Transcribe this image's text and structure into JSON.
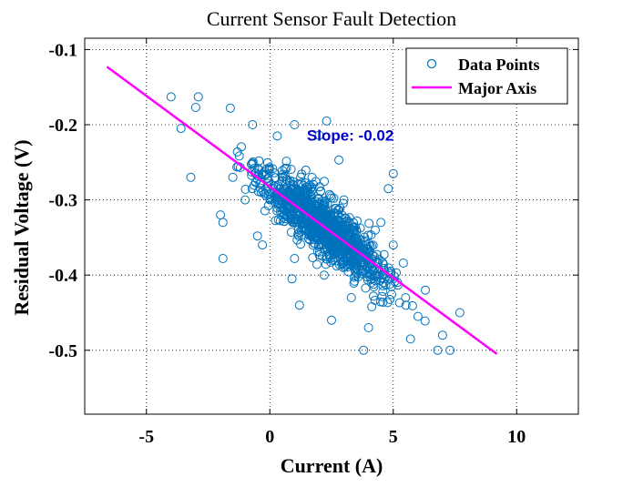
{
  "chart_data": {
    "type": "scatter",
    "title": "Current Sensor Fault Detection",
    "xlabel": "Current (A)",
    "ylabel": "Residual Voltage (V)",
    "xlim": [
      -7.5,
      12.5
    ],
    "ylim": [
      -0.585,
      -0.085
    ],
    "xticks": [
      -5,
      0,
      5,
      10
    ],
    "xtick_labels": [
      "-5",
      "0",
      "5",
      "10"
    ],
    "yticks": [
      -0.1,
      -0.2,
      -0.3,
      -0.4,
      -0.5
    ],
    "ytick_labels": [
      "-0.1",
      "-0.2",
      "-0.3",
      "-0.4",
      "-0.5"
    ],
    "grid": "dotted at major ticks",
    "legend": "top-right",
    "series": [
      {
        "name": "Data Points",
        "kind": "scatter",
        "marker": "circle-open",
        "color": "#0072BD",
        "points": [
          [
            -4.0,
            -0.163
          ],
          [
            -3.0,
            -0.177
          ],
          [
            -2.9,
            -0.163
          ],
          [
            -1.6,
            -0.178
          ],
          [
            -3.6,
            -0.205
          ],
          [
            -3.2,
            -0.27
          ],
          [
            -2.0,
            -0.32
          ],
          [
            -1.9,
            -0.33
          ],
          [
            -1.9,
            -0.378
          ],
          [
            -1.5,
            -0.27
          ],
          [
            -1.0,
            -0.3
          ],
          [
            -0.7,
            -0.2
          ],
          [
            -0.5,
            -0.348
          ],
          [
            -0.3,
            -0.36
          ],
          [
            0.0,
            -0.3
          ],
          [
            0.5,
            -0.27
          ],
          [
            0.8,
            -0.31
          ],
          [
            1.2,
            -0.29
          ],
          [
            1.5,
            -0.34
          ],
          [
            1.0,
            -0.378
          ],
          [
            1.2,
            -0.44
          ],
          [
            0.9,
            -0.405
          ],
          [
            2.0,
            -0.36
          ],
          [
            2.2,
            -0.4
          ],
          [
            2.5,
            -0.46
          ],
          [
            3.0,
            -0.3
          ],
          [
            3.3,
            -0.43
          ],
          [
            3.8,
            -0.5
          ],
          [
            4.0,
            -0.47
          ],
          [
            4.5,
            -0.33
          ],
          [
            4.6,
            -0.41
          ],
          [
            5.0,
            -0.36
          ],
          [
            5.5,
            -0.43
          ],
          [
            5.7,
            -0.485
          ],
          [
            6.3,
            -0.42
          ],
          [
            6.8,
            -0.5
          ],
          [
            7.0,
            -0.48
          ],
          [
            7.3,
            -0.5
          ],
          [
            7.7,
            -0.45
          ],
          [
            5.0,
            -0.265
          ],
          [
            4.8,
            -0.285
          ],
          [
            2.8,
            -0.247
          ],
          [
            2.0,
            -0.214
          ],
          [
            1.0,
            -0.2
          ],
          [
            0.3,
            -0.215
          ],
          [
            3.5,
            -0.34
          ],
          [
            6.0,
            -0.455
          ],
          [
            2.3,
            -0.195
          ]
        ]
      },
      {
        "name": "Major Axis",
        "kind": "line",
        "color": "#FF00FF",
        "points": [
          [
            -6.6,
            -0.123
          ],
          [
            9.2,
            -0.505
          ]
        ]
      }
    ],
    "annotations": [
      {
        "text": "Slope: -0.02",
        "x": 1.5,
        "y": -0.214,
        "color": "#0000CC"
      }
    ]
  }
}
